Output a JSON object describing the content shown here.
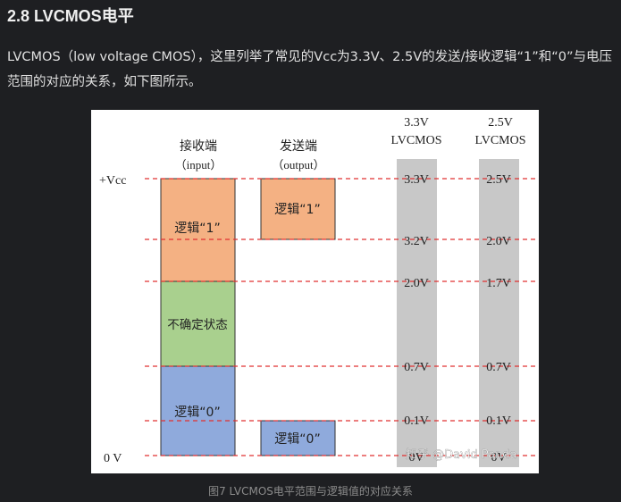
{
  "heading": "2.8 LVCMOS电平",
  "paragraph": "LVCMOS（low voltage CMOS），这里列举了常见的Vcc为3.3V、2.5V的发送/接收逻辑“1”和“0”与电压范围的对应的关系，如下图所示。",
  "figure": {
    "col_receiver": "接收端",
    "col_receiver_sub": "（input）",
    "col_sender": "发送端",
    "col_sender_sub": "（output）",
    "col_33_line1": "3.3V",
    "col_33_line2": "LVCMOS",
    "col_25_line1": "2.5V",
    "col_25_line2": "LVCMOS",
    "label_vcc": "+Vcc",
    "label_0v": "0 V",
    "rx_logic1": "逻辑“1”",
    "rx_undefined": "不确定状态",
    "rx_logic0": "逻辑“0”",
    "tx_logic1": "逻辑“1”",
    "tx_logic0": "逻辑“0”",
    "v33": [
      "3.3V",
      "3.2V",
      "2.0V",
      "0.7V",
      "0.1V",
      "0V"
    ],
    "v25": [
      "2.5V",
      "2.0V",
      "1.7V",
      "0.7V",
      "0.1V",
      "0V"
    ],
    "watermark": "知乎 @David Panda",
    "colors": {
      "logic1": "#f4b183",
      "undefined": "#a9d08e",
      "logic0": "#8faadc",
      "dash": "#e03030",
      "column_bg": "#c8c8c8"
    }
  },
  "caption": "图7 LVCMOS电平范围与逻辑值的对应关系"
}
